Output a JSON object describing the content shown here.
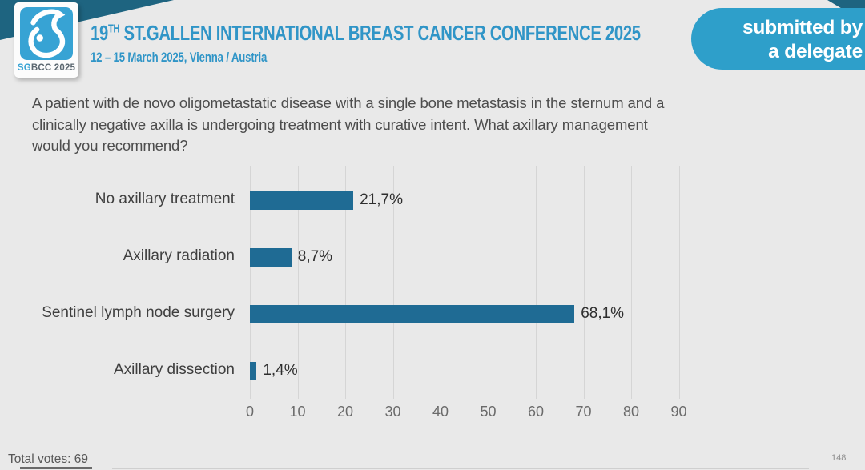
{
  "header": {
    "logo": {
      "icon": "sgbcc-breast-icon",
      "text_sg": "SG",
      "text_rest": "BCC 2025"
    },
    "title_prefix": "19",
    "title_sup": "TH",
    "title_rest": " ST.GALLEN INTERNATIONAL BREAST CANCER CONFERENCE 2025",
    "subtitle": "12 – 15 March 2025, Vienna / Austria",
    "badge": {
      "line1": "submitted by",
      "line2": "a delegate"
    }
  },
  "question": {
    "lines": [
      "A patient with de novo oligometastatic disease with a single bone metastasis in the sternum and a",
      "clinically negative axilla is undergoing treatment with curative intent. What axillary management",
      "would you recommend?"
    ]
  },
  "chart_data": {
    "type": "bar",
    "orientation": "horizontal",
    "title": "",
    "categories": [
      "No axillary treatment",
      "Axillary radiation",
      "Sentinel lymph node surgery",
      "Axillary dissection"
    ],
    "values": [
      21.7,
      8.7,
      68.1,
      1.4
    ],
    "value_labels": [
      "21,7%",
      "8,7%",
      "68,1%",
      "1,4%"
    ],
    "xlim": [
      0,
      90
    ],
    "xticks": [
      0,
      10,
      20,
      30,
      40,
      50,
      60,
      70,
      80,
      90
    ],
    "grid": true,
    "legend": "none",
    "total_votes": 69
  },
  "footer": {
    "total_votes": "Total votes: 69",
    "page_number": "148"
  },
  "colors": {
    "band_teal": "#1e6480",
    "pill_blue": "#2e9fca",
    "logo_blue": "#37a3d4",
    "title_blue": "#3095c7",
    "bar_blue": "#1f6b94",
    "background": "#e9e9e9"
  }
}
